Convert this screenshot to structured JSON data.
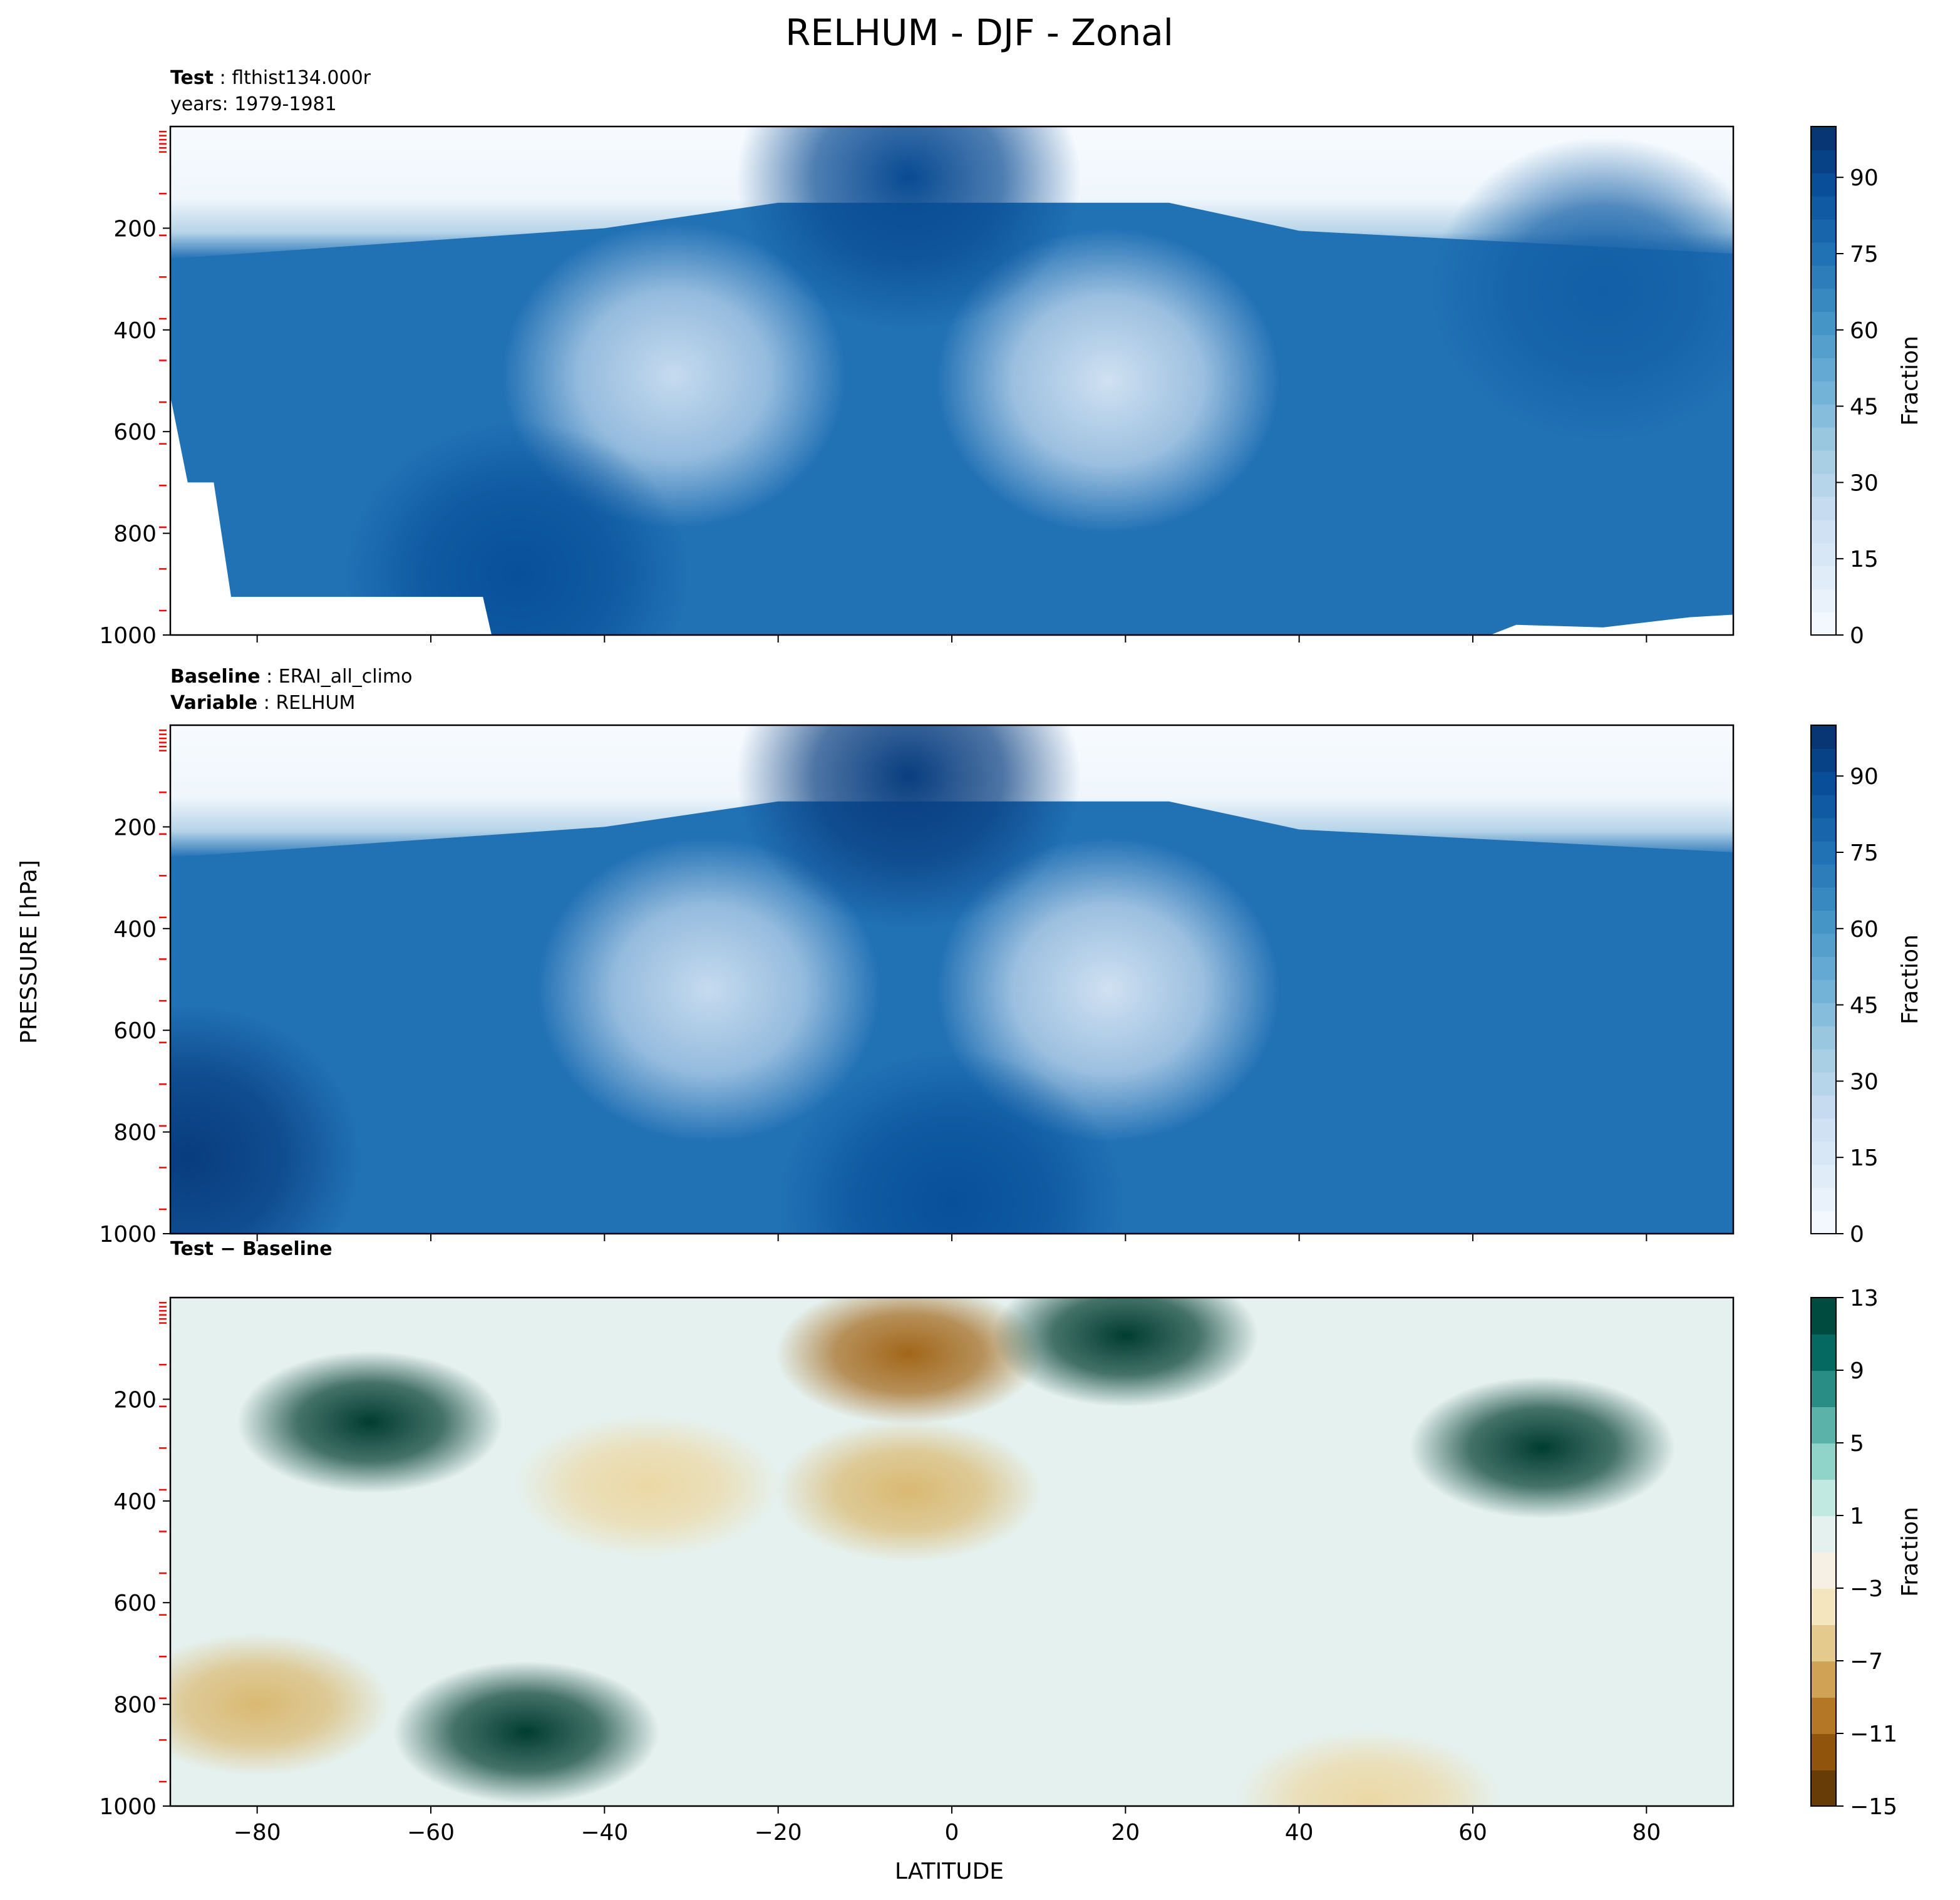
{
  "figure": {
    "title": "RELHUM - DJF - Zonal",
    "ylabel": "PRESSURE [hPa]",
    "xlabel": "LATITUDE"
  },
  "chart_data": [
    {
      "type": "heatmap",
      "panel": "test",
      "header": [
        {
          "bold": "Test",
          "text": "flthist134.000r"
        },
        {
          "bold": "",
          "text": "years: 1979-1981"
        }
      ],
      "xlim": [
        -90,
        90
      ],
      "ylim": [
        1000,
        0
      ],
      "xticks": [
        -80,
        -60,
        -40,
        -20,
        0,
        20,
        40,
        60,
        80
      ],
      "yticks": [
        200,
        400,
        600,
        800,
        1000
      ],
      "xtick_labels_shown": false,
      "colormap": "Blues",
      "colorbar": {
        "label": "Fraction",
        "range": [
          0,
          100
        ],
        "ticks": [
          0,
          15,
          30,
          45,
          60,
          75,
          90
        ]
      },
      "surface_mask": [
        [
          -90,
          530
        ],
        [
          -88,
          700
        ],
        [
          -85,
          700
        ],
        [
          -83,
          925
        ],
        [
          -54,
          925
        ],
        [
          -53,
          1000
        ],
        [
          62,
          1000
        ],
        [
          65,
          980
        ],
        [
          75,
          985
        ],
        [
          85,
          965
        ],
        [
          90,
          960
        ]
      ],
      "features": [
        {
          "lat": -32,
          "p": 490,
          "value": 25,
          "note": "subtropical dry minimum"
        },
        {
          "lat": 18,
          "p": 500,
          "value": 20,
          "note": "subtropical dry minimum"
        },
        {
          "lat": -5,
          "p": 100,
          "value": 90,
          "note": "tropical tropopause maximum"
        },
        {
          "lat": -50,
          "p": 880,
          "value": 88,
          "note": "boundary layer maximum"
        },
        {
          "lat": 75,
          "p": 320,
          "value": 82,
          "note": "polar upper troposphere"
        }
      ]
    },
    {
      "type": "heatmap",
      "panel": "baseline",
      "header": [
        {
          "bold": "Baseline",
          "text": "ERAI_all_climo"
        },
        {
          "bold": "Variable",
          "text": "RELHUM"
        }
      ],
      "xlim": [
        -90,
        90
      ],
      "ylim": [
        1000,
        0
      ],
      "xticks": [
        -80,
        -60,
        -40,
        -20,
        0,
        20,
        40,
        60,
        80
      ],
      "yticks": [
        200,
        400,
        600,
        800,
        1000
      ],
      "xtick_labels_shown": false,
      "colormap": "Blues",
      "colorbar": {
        "label": "Fraction",
        "range": [
          0,
          100
        ],
        "ticks": [
          0,
          15,
          30,
          45,
          60,
          75,
          90
        ]
      },
      "features": [
        {
          "lat": -28,
          "p": 520,
          "value": 25,
          "note": "subtropical dry minimum"
        },
        {
          "lat": 18,
          "p": 520,
          "value": 20,
          "note": "subtropical dry minimum"
        },
        {
          "lat": -5,
          "p": 100,
          "value": 95,
          "note": "tropical tropopause maximum"
        },
        {
          "lat": -88,
          "p": 850,
          "value": 95,
          "note": "antarctic boundary layer"
        },
        {
          "lat": 0,
          "p": 940,
          "value": 88,
          "note": "boundary layer maximum"
        }
      ]
    },
    {
      "type": "heatmap",
      "panel": "difference",
      "header": [
        {
          "bold": "Test − Baseline",
          "text": ""
        }
      ],
      "xlim": [
        -90,
        90
      ],
      "ylim": [
        1000,
        0
      ],
      "xticks": [
        -80,
        -60,
        -40,
        -20,
        0,
        20,
        40,
        60,
        80
      ],
      "xtick_labels": [
        "−80",
        "−60",
        "−40",
        "−20",
        "0",
        "20",
        "40",
        "60",
        "80"
      ],
      "yticks": [
        200,
        400,
        600,
        800,
        1000
      ],
      "colormap": "BrBG",
      "colorbar": {
        "label": "Fraction",
        "range": [
          -15,
          13
        ],
        "ticks": [
          13,
          9,
          5,
          1,
          -3,
          -7,
          -11,
          -15
        ],
        "tick_labels": [
          "13",
          "9",
          "5",
          "1",
          "−3",
          "−7",
          "−11",
          "−15"
        ]
      },
      "features": [
        {
          "lat": -67,
          "p": 245,
          "value": 20,
          "note": "southern upper-tropospheric moist bias (exceeds range)"
        },
        {
          "lat": 68,
          "p": 295,
          "value": 20,
          "note": "northern upper-tropospheric moist bias (exceeds range)"
        },
        {
          "lat": -5,
          "p": 110,
          "value": -11,
          "note": "tropical tropopause dry bias"
        },
        {
          "lat": -5,
          "p": 380,
          "value": -7,
          "note": "tropical mid-troposphere dry bias"
        },
        {
          "lat": -35,
          "p": 370,
          "value": -5,
          "note": "southern subtropical dry bias"
        },
        {
          "lat": -49,
          "p": 855,
          "value": 20,
          "note": "southern boundary layer moist bias"
        },
        {
          "lat": -80,
          "p": 800,
          "value": -7,
          "note": "antarctic low-level dry bias"
        },
        {
          "lat": 48,
          "p": 990,
          "value": -5,
          "note": "northern surface dry bias"
        },
        {
          "lat": 20,
          "p": 75,
          "value": 13,
          "note": "tropopause moist bias"
        }
      ]
    }
  ],
  "colors": {
    "blues": [
      "#f7fbff",
      "#deebf7",
      "#c6dbef",
      "#9ecae1",
      "#6baed6",
      "#4292c6",
      "#2171b5",
      "#08519c",
      "#08306b"
    ],
    "brbg": [
      "#543005",
      "#8c510a",
      "#bf812d",
      "#dfc27d",
      "#f6e8c3",
      "#f5f5f5",
      "#c7eae5",
      "#80cdc1",
      "#35978f",
      "#01665e",
      "#003c30"
    ],
    "tick_marker": "#ff0000"
  }
}
